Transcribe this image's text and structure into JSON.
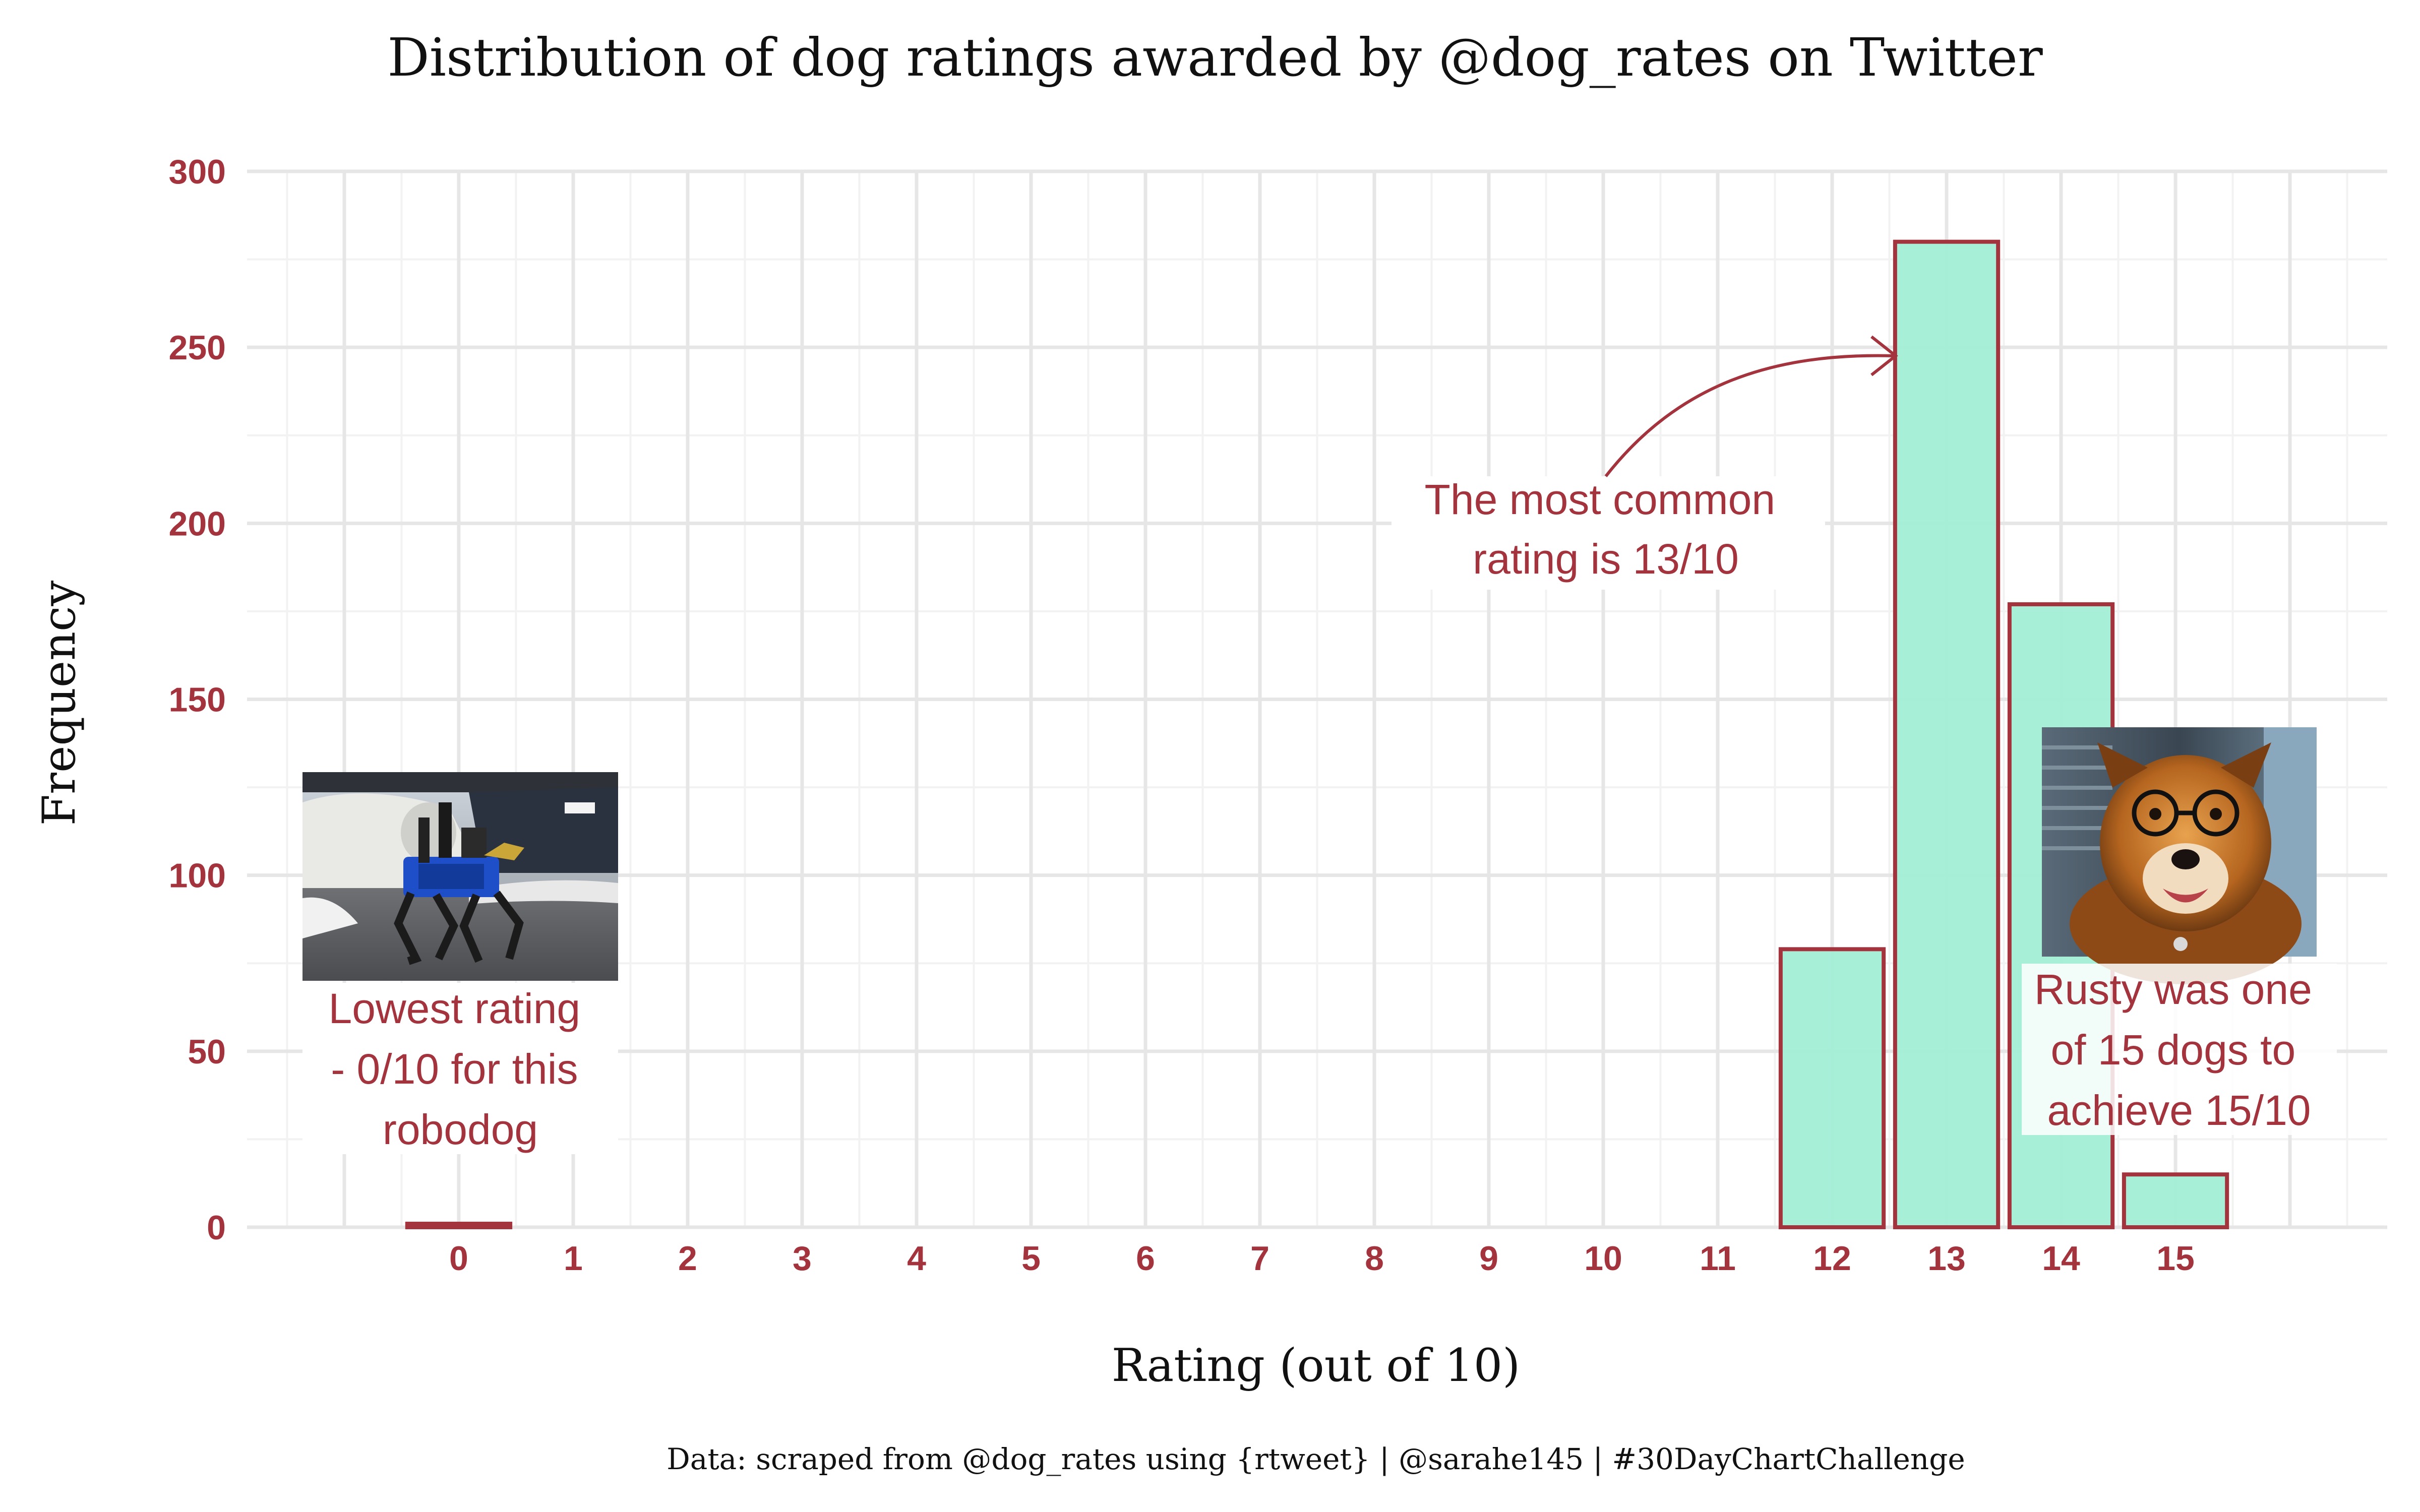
{
  "chart_data": {
    "type": "bar",
    "title": "Distribution of dog ratings awarded by @dog_rates on Twitter",
    "xlabel": "Rating (out of 10)",
    "ylabel": "Frequency",
    "caption": "Data: scraped from @dog_rates using {rtweet} | @sarahe145 | #30DayChartChallenge",
    "categories": [
      "0",
      "1",
      "2",
      "3",
      "4",
      "5",
      "6",
      "7",
      "8",
      "9",
      "10",
      "11",
      "12",
      "13",
      "14",
      "15"
    ],
    "values": [
      1,
      0,
      0,
      0,
      0,
      0,
      0,
      0,
      0,
      0,
      0,
      0,
      79,
      280,
      177,
      15
    ],
    "ylim": [
      0,
      300
    ],
    "yticks": [
      0,
      50,
      100,
      150,
      200,
      250,
      300
    ],
    "xlim": [
      -1.85,
      16.85
    ],
    "grid": true,
    "legend": "none",
    "annotations": [
      {
        "id": "most-common",
        "lines": [
          "The most common",
          "rating is 13/10"
        ],
        "arrow_to": [
          12.5,
          250
        ]
      },
      {
        "id": "lowest",
        "lines": [
          "Lowest rating",
          "- 0/10 for this",
          "robodog"
        ]
      },
      {
        "id": "rusty",
        "lines": [
          "Rusty was one",
          "of 15 dogs to",
          "achieve 15/10"
        ]
      }
    ]
  },
  "colors": {
    "bar_fill": "#a3eed6",
    "bar_stroke": "#a3333d",
    "accent": "#a3333d",
    "grid_major": "#e6e6e6",
    "grid_minor": "#f2f2f2",
    "text": "#111111"
  }
}
